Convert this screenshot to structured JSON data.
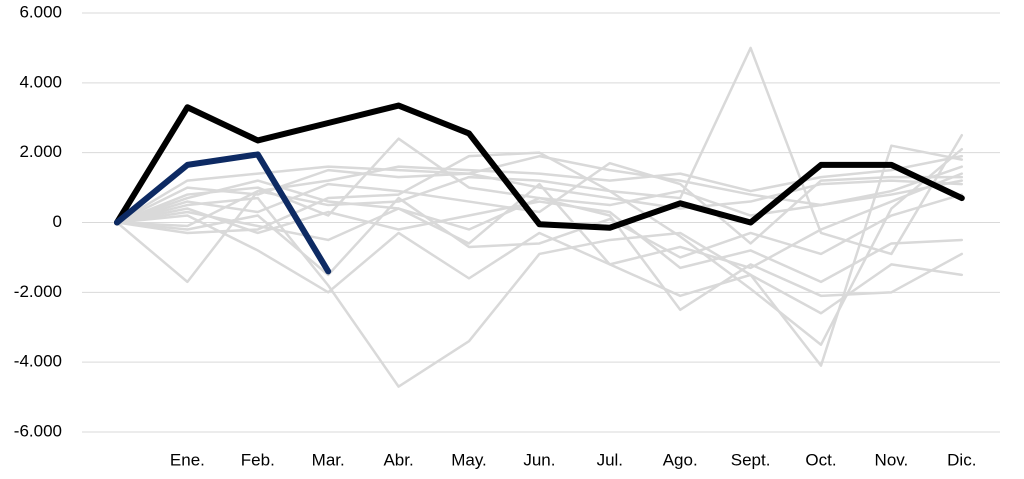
{
  "chart_data": {
    "type": "line",
    "categories": [
      null,
      "Ene.",
      "Feb.",
      "Mar.",
      "Abr.",
      "May.",
      "Jun.",
      "Jul.",
      "Ago.",
      "Sept.",
      "Oct.",
      "Nov.",
      "Dic."
    ],
    "ylim": [
      -6000,
      6000
    ],
    "yticks": [
      {
        "value": -6000,
        "label": "-6.000"
      },
      {
        "value": -4000,
        "label": "-4.000"
      },
      {
        "value": -2000,
        "label": "-2.000"
      },
      0,
      {
        "value": 2000,
        "label": "2.000"
      },
      {
        "value": 4000,
        "label": "4.000"
      },
      {
        "value": 6000,
        "label": "6.000"
      }
    ],
    "grid": true,
    "series": [
      {
        "color": "#d9d9d9",
        "values": [
          0,
          -1700,
          900,
          500,
          600,
          1300,
          1200,
          900,
          700,
          5000,
          -300,
          -900,
          2500
        ]
      },
      {
        "color": "#d9d9d9",
        "values": [
          0,
          500,
          700,
          -1800,
          -4700,
          -3400,
          -900,
          -500,
          -300,
          -1500,
          -4100,
          2200,
          1800
        ]
      },
      {
        "color": "#d9d9d9",
        "values": [
          0,
          800,
          1000,
          200,
          2400,
          1000,
          700,
          200,
          -2500,
          -1200,
          -2100,
          -2000,
          -900
        ]
      },
      {
        "color": "#d9d9d9",
        "values": [
          0,
          1200,
          1400,
          1600,
          1500,
          1400,
          1900,
          1500,
          1200,
          800,
          500,
          900,
          1600
        ]
      },
      {
        "color": "#d9d9d9",
        "values": [
          0,
          200,
          -800,
          -2000,
          -300,
          -1600,
          -300,
          -1200,
          -2100,
          -1500,
          -2600,
          -1200,
          -1500
        ]
      },
      {
        "color": "#d9d9d9",
        "values": [
          0,
          -300,
          -200,
          700,
          800,
          1900,
          2000,
          900,
          -400,
          -1900,
          -3500,
          400,
          2100
        ]
      },
      {
        "color": "#d9d9d9",
        "values": [
          0,
          600,
          300,
          1100,
          900,
          600,
          300,
          1700,
          1100,
          -600,
          1200,
          1300,
          1300
        ]
      },
      {
        "color": "#d9d9d9",
        "values": [
          0,
          300,
          -100,
          -500,
          400,
          -600,
          1100,
          -1200,
          -700,
          -1300,
          -200,
          600,
          1400
        ]
      },
      {
        "color": "#d9d9d9",
        "values": [
          0,
          -100,
          900,
          1200,
          1600,
          1500,
          1400,
          1200,
          1400,
          900,
          1300,
          1500,
          1900
        ]
      },
      {
        "color": "#d9d9d9",
        "values": [
          0,
          400,
          -300,
          300,
          -200,
          200,
          600,
          300,
          -1300,
          -800,
          -1700,
          -600,
          -500
        ]
      },
      {
        "color": "#d9d9d9",
        "values": [
          0,
          1000,
          800,
          1500,
          1300,
          1400,
          1000,
          700,
          400,
          600,
          1100,
          1200,
          1100
        ]
      },
      {
        "color": "#d9d9d9",
        "values": [
          0,
          -200,
          200,
          -1500,
          700,
          -700,
          -600,
          100,
          -1000,
          -300,
          -900,
          200,
          800
        ]
      },
      {
        "color": "#d9d9d9",
        "values": [
          0,
          700,
          1200,
          600,
          400,
          -200,
          700,
          500,
          900,
          200,
          500,
          800,
          1200
        ]
      },
      {
        "color": "#000000",
        "values": [
          0,
          3300,
          2350,
          2850,
          3350,
          2550,
          -50,
          -150,
          550,
          0,
          1650,
          1650,
          700
        ]
      },
      {
        "color": "#0d2a63",
        "values": [
          0,
          1650,
          1950,
          -1400,
          null,
          null,
          null,
          null,
          null,
          null,
          null,
          null,
          null
        ]
      }
    ]
  }
}
